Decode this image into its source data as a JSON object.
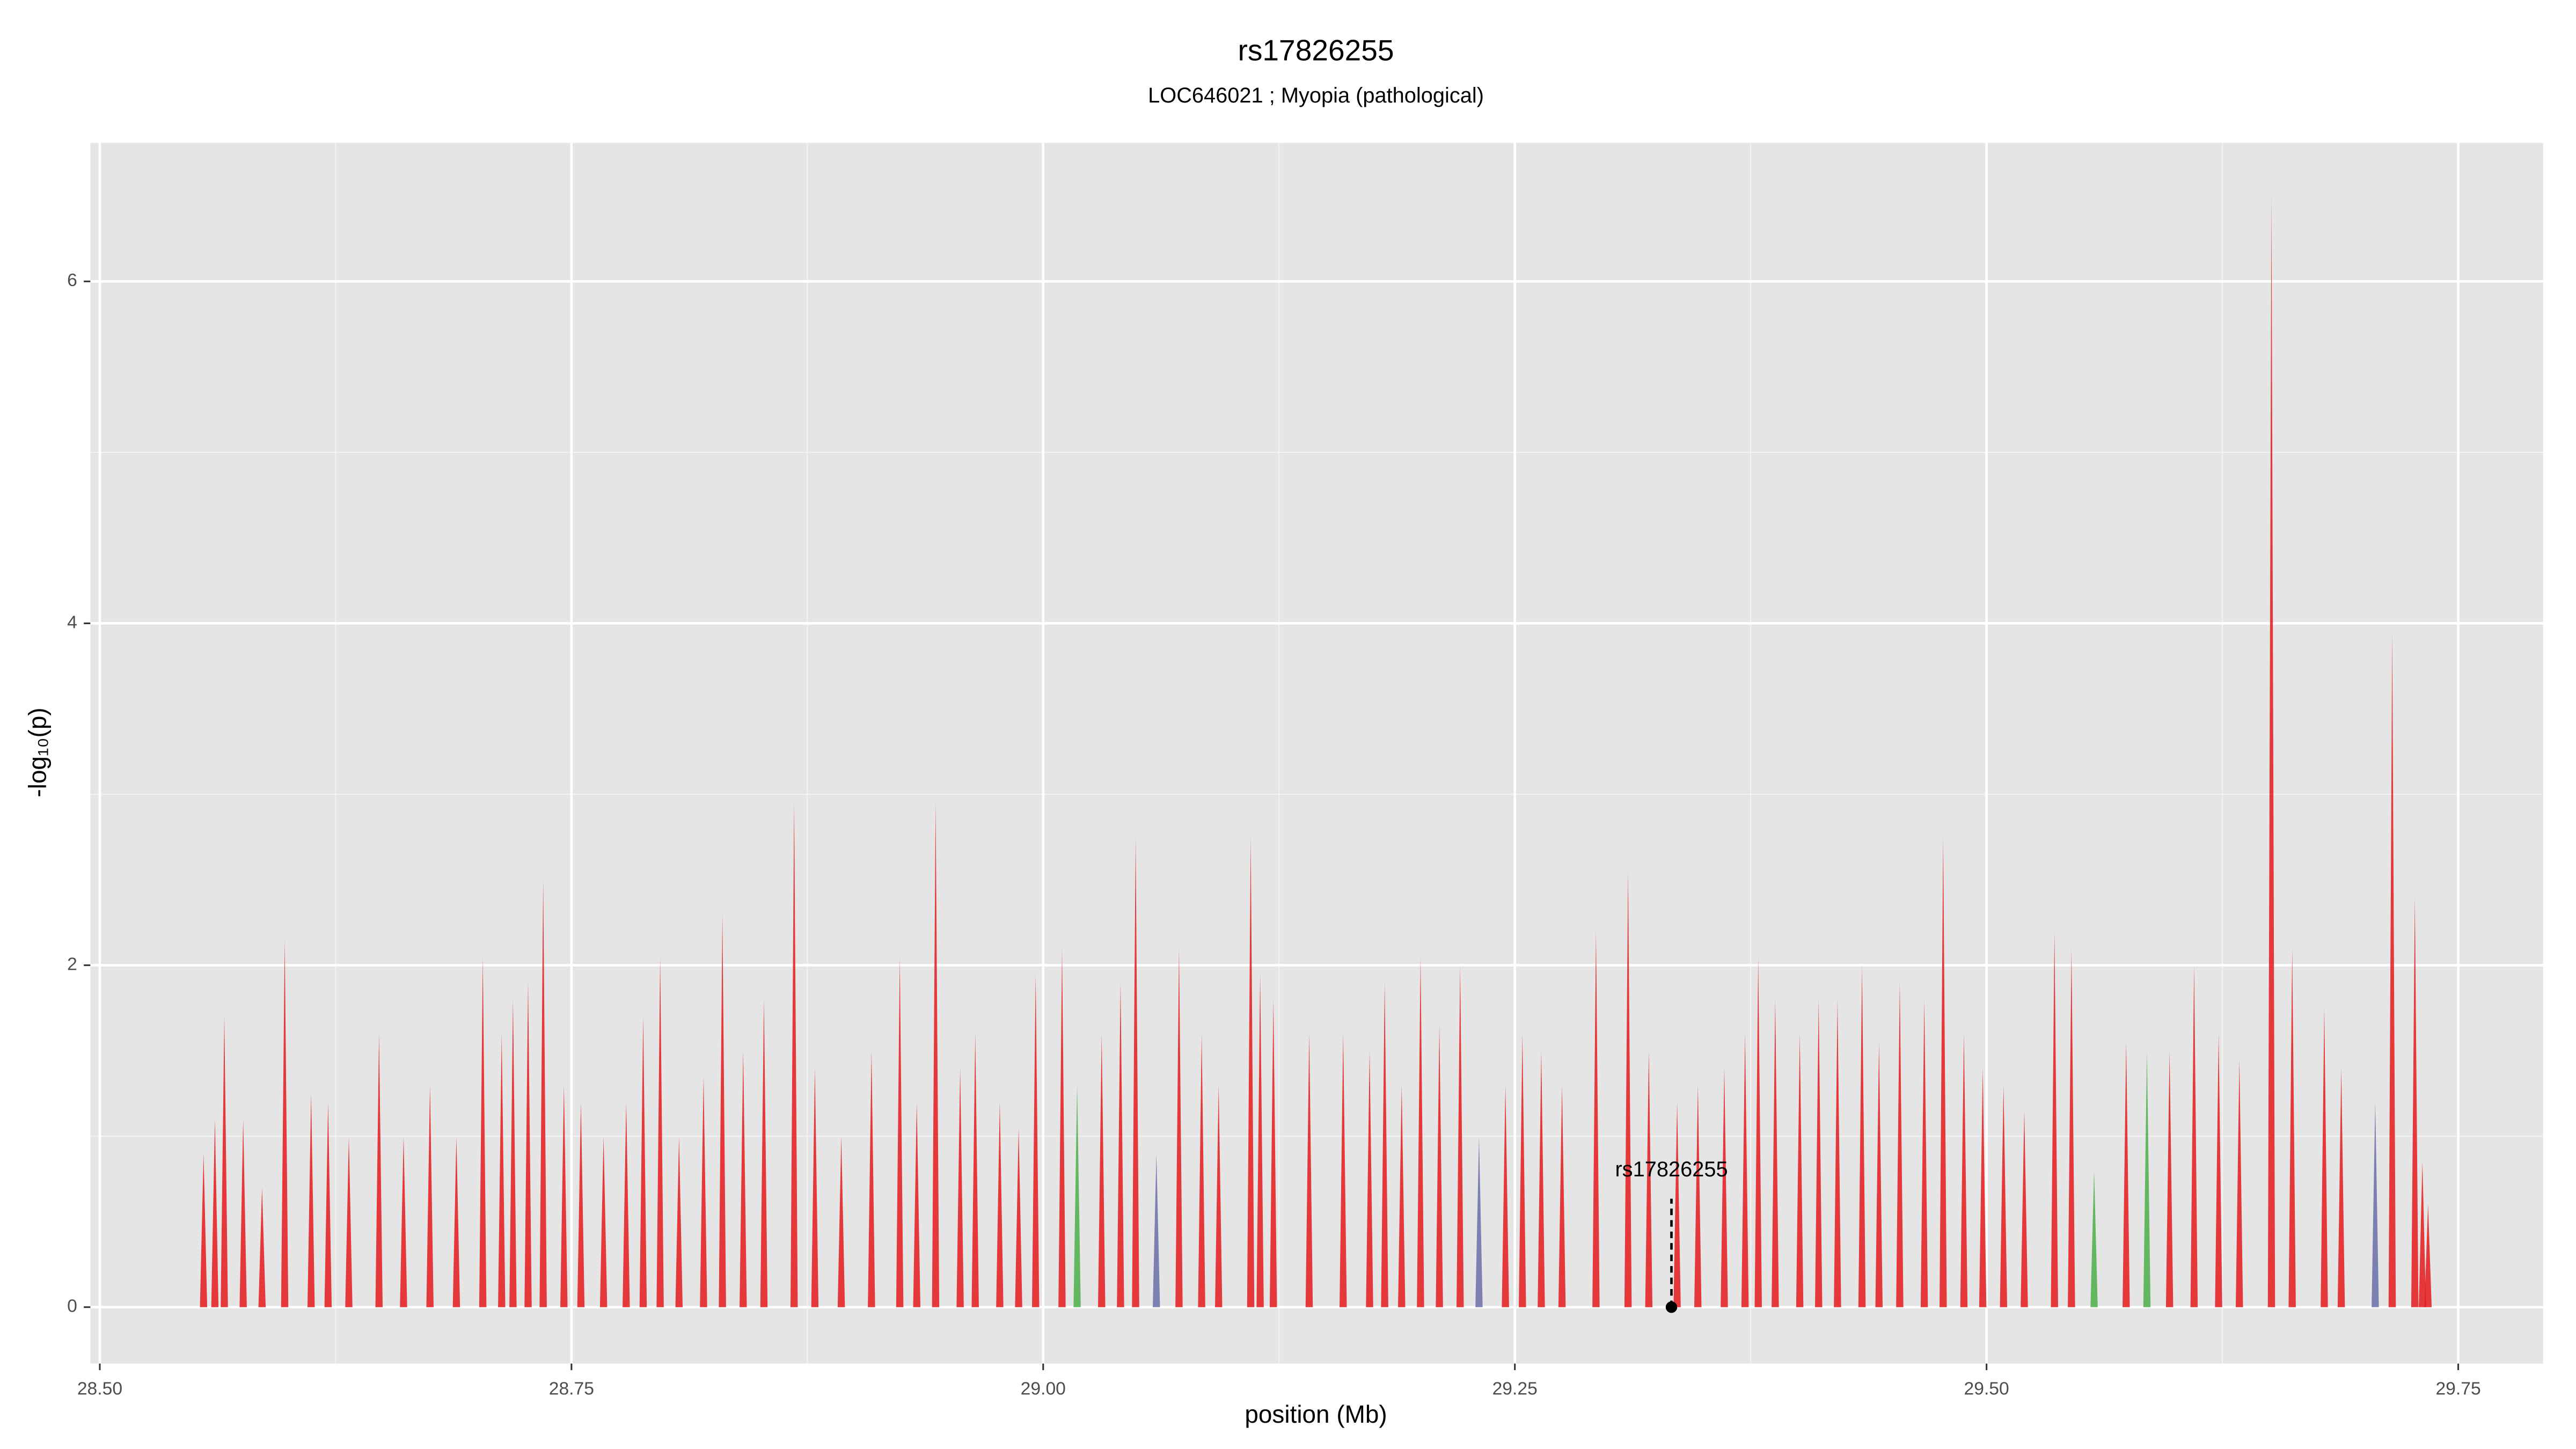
{
  "chart_data": {
    "type": "spike",
    "title": "rs17826255",
    "subtitle": "LOC646021 ; Myopia (pathological)",
    "x_label": "position (Mb)",
    "y_label": "-log₁₀(p)",
    "xlim": [
      28.495,
      29.795
    ],
    "ylim": [
      -0.33,
      6.81
    ],
    "xticks": [
      {
        "value": 28.5,
        "label": "28.50"
      },
      28.75,
      {
        "value": 29,
        "label": "29.00"
      },
      29.25,
      {
        "value": 29.5,
        "label": "29.50"
      },
      29.75
    ],
    "yticks": [
      0,
      2,
      4,
      6
    ],
    "grid": true,
    "series": [
      {
        "color": "#e41a1c",
        "x": [
          28.555,
          28.561,
          28.566,
          28.576,
          28.586,
          28.598,
          28.612,
          28.621,
          28.632,
          28.648,
          28.661,
          28.675,
          28.689,
          28.703,
          28.713,
          28.719,
          28.727,
          28.735,
          28.746,
          28.755,
          28.767,
          28.779,
          28.788,
          28.797,
          28.807,
          28.82,
          28.83,
          28.841,
          28.852,
          28.868,
          28.879,
          28.893,
          28.909,
          28.924,
          28.933,
          28.943,
          28.956,
          28.964,
          28.977,
          28.987,
          28.996,
          29.01,
          29.031,
          29.041,
          29.049,
          29.072,
          29.084,
          29.093,
          29.11,
          29.115,
          29.122,
          29.141,
          29.159,
          29.173,
          29.181,
          29.19,
          29.2,
          29.21,
          29.221,
          29.245,
          29.254,
          29.264,
          29.275,
          29.293,
          29.31,
          29.321,
          29.336,
          29.347,
          29.361,
          29.372,
          29.379,
          29.388,
          29.401,
          29.411,
          29.421,
          29.434,
          29.443,
          29.454,
          29.467,
          29.477,
          29.488,
          29.498,
          29.509,
          29.52,
          29.536,
          29.545,
          29.574,
          29.597,
          29.61,
          29.623,
          29.634,
          29.651,
          29.662,
          29.679,
          29.688,
          29.715,
          29.727,
          29.731,
          29.734
        ],
        "values": [
          0.9,
          1.1,
          1.7,
          1.1,
          0.7,
          2.15,
          1.25,
          1.2,
          1.0,
          1.6,
          1.0,
          1.3,
          1.0,
          2.05,
          1.6,
          1.8,
          1.9,
          2.5,
          1.3,
          1.2,
          1.0,
          1.2,
          1.7,
          2.05,
          1.0,
          1.35,
          2.3,
          1.5,
          1.8,
          2.95,
          1.4,
          1.0,
          1.5,
          2.05,
          1.2,
          2.95,
          1.4,
          1.6,
          1.2,
          1.05,
          1.95,
          2.1,
          1.6,
          1.9,
          2.75,
          2.1,
          1.6,
          1.3,
          2.75,
          1.95,
          1.8,
          1.6,
          1.6,
          1.5,
          1.9,
          1.3,
          2.05,
          1.65,
          2.0,
          1.3,
          1.6,
          1.5,
          1.3,
          2.2,
          2.55,
          1.5,
          1.2,
          1.3,
          1.4,
          1.6,
          2.05,
          1.8,
          1.6,
          1.8,
          1.8,
          2.0,
          1.55,
          1.9,
          1.8,
          2.75,
          1.6,
          1.4,
          1.3,
          1.15,
          2.2,
          2.1,
          1.55,
          1.5,
          2.0,
          1.6,
          1.45,
          6.5,
          2.1,
          1.75,
          1.4,
          3.95,
          2.4,
          0.85,
          0.6
        ]
      },
      {
        "color": "#4daf4a",
        "x": [
          29.018,
          29.557,
          29.585
        ],
        "values": [
          1.3,
          0.8,
          1.5
        ]
      },
      {
        "color": "#6a6fa8",
        "x": [
          29.06,
          29.231,
          29.706
        ],
        "values": [
          0.9,
          1.0,
          1.2
        ]
      }
    ],
    "highlight": {
      "label": "rs17826255",
      "x": 29.333,
      "value": 0
    }
  }
}
